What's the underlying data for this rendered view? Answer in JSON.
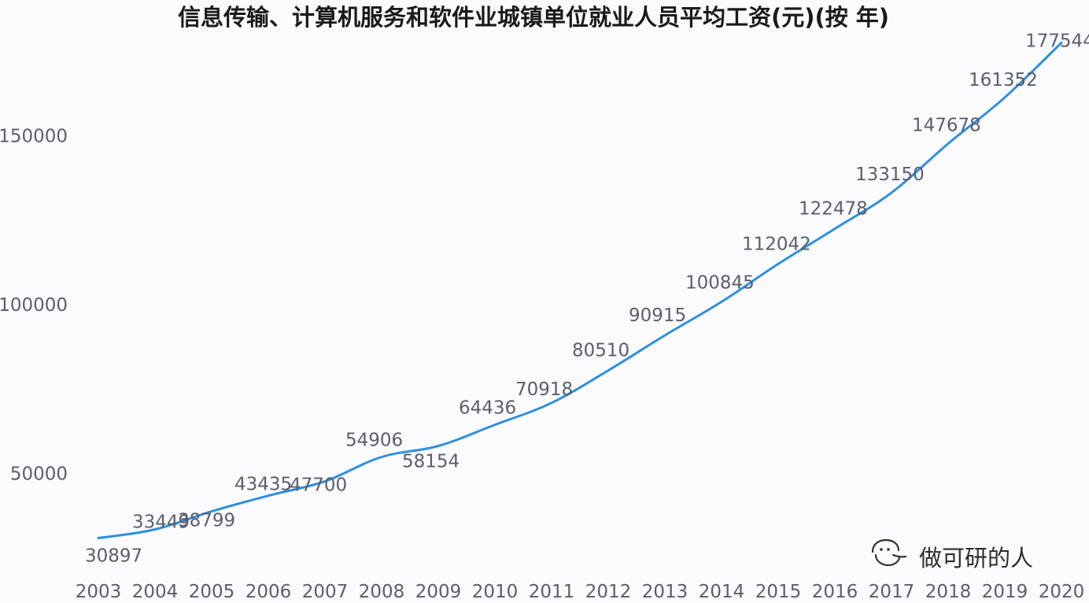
{
  "chart_data": {
    "type": "line",
    "title": "信息传输、计算机服务和软件业城镇单位就业人员平均工资(元)(按 年)",
    "xlabel": "",
    "ylabel": "",
    "x": [
      "2003",
      "2004",
      "2005",
      "2006",
      "2007",
      "2008",
      "2009",
      "2010",
      "2011",
      "2012",
      "2013",
      "2014",
      "2015",
      "2016",
      "2017",
      "2018",
      "2019",
      "2020"
    ],
    "series": [
      {
        "values": [
          30897,
          33449,
          38799,
          43435,
          47700,
          54906,
          58154,
          64436,
          70918,
          80510,
          90915,
          100845,
          112042,
          122478,
          133150,
          147678,
          161352,
          177544
        ],
        "color": "#2e8fe0"
      }
    ],
    "yticks": [
      "50000",
      "100000",
      "150000"
    ],
    "ylim": [
      23000,
      182000
    ],
    "grid": false,
    "legend": "none",
    "data_labels": true
  },
  "watermark": {
    "text": "做可研的人",
    "icon": "wechat-icon"
  }
}
